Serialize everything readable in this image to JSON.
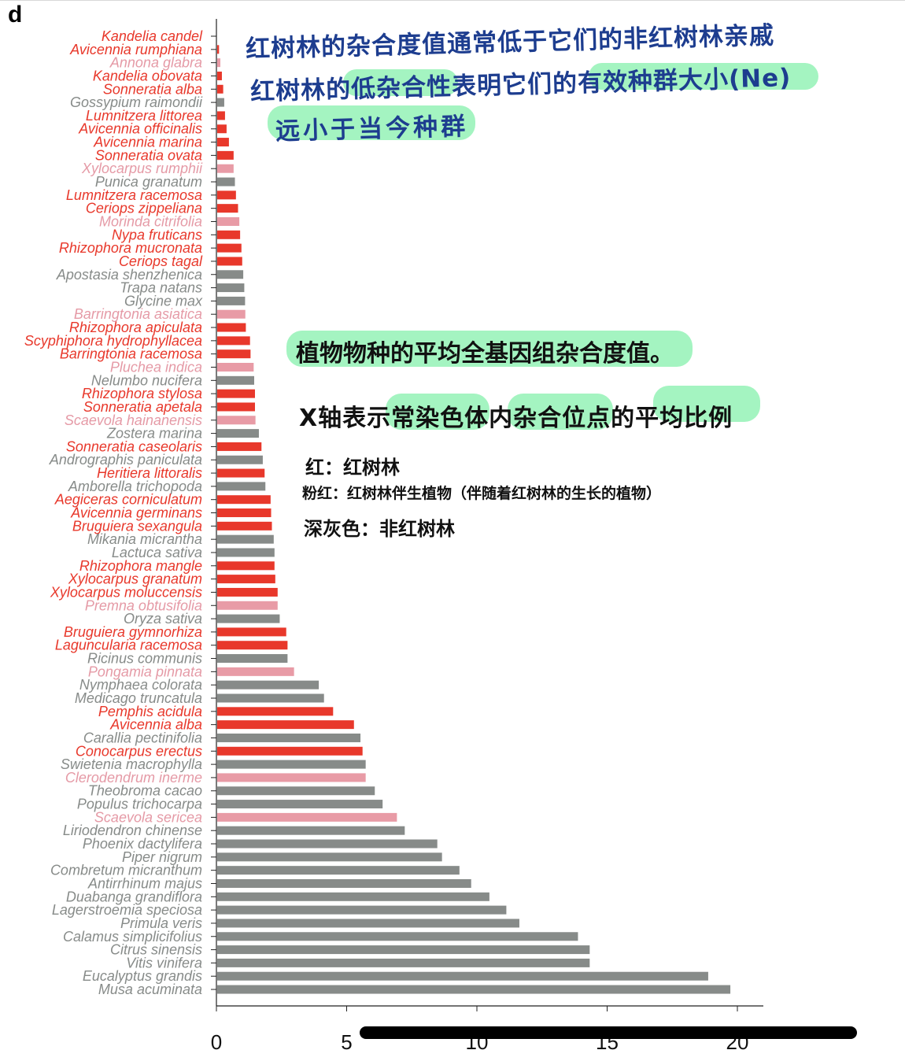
{
  "panel_label": "d",
  "annotations": {
    "line1": "红树林的杂合度值通常低于它们的非红树林亲戚",
    "line2": "红树林的低杂合性表明它们的有效种群大小(Ne)",
    "line3": "远小于当今种群",
    "line4": "植物物种的平均全基因组杂合度值。",
    "line5": "X轴表示常染色体内杂合位点的平均比例",
    "legend_red": "红：红树林",
    "legend_pink": "粉红：红树林伴生植物（伴随着红树林的生长的植物）",
    "legend_gray": "深灰色：非红树林"
  },
  "colors": {
    "mangrove": "#e8382b",
    "associate": "#e89ba6",
    "non_mangrove": "#878b89"
  },
  "chart_data": {
    "type": "bar",
    "orientation": "horizontal",
    "xlim": [
      0,
      21
    ],
    "xticks": [
      0,
      5,
      10,
      15,
      20
    ],
    "xlabel": "",
    "ylabel": "",
    "title": "",
    "bars": [
      {
        "name": "Kandelia candel",
        "value": 0.0,
        "group": "mangrove"
      },
      {
        "name": "Avicennia rumphiana",
        "value": 0.07,
        "group": "mangrove"
      },
      {
        "name": "Annona glabra",
        "value": 0.12,
        "group": "associate"
      },
      {
        "name": "Kandelia obovata",
        "value": 0.18,
        "group": "mangrove"
      },
      {
        "name": "Sonneratia alba",
        "value": 0.23,
        "group": "mangrove"
      },
      {
        "name": "Gossypium raimondii",
        "value": 0.27,
        "group": "non_mangrove"
      },
      {
        "name": "Lumnitzera littorea",
        "value": 0.3,
        "group": "mangrove"
      },
      {
        "name": "Avicennia officinalis",
        "value": 0.36,
        "group": "mangrove"
      },
      {
        "name": "Avicennia marina",
        "value": 0.45,
        "group": "mangrove"
      },
      {
        "name": "Sonneratia ovata",
        "value": 0.63,
        "group": "mangrove"
      },
      {
        "name": "Xylocarpus rumphii",
        "value": 0.63,
        "group": "associate"
      },
      {
        "name": "Punica granatum",
        "value": 0.68,
        "group": "non_mangrove"
      },
      {
        "name": "Lumnitzera racemosa",
        "value": 0.72,
        "group": "mangrove"
      },
      {
        "name": "Ceriops zippeliana",
        "value": 0.8,
        "group": "mangrove"
      },
      {
        "name": "Morinda citrifolia",
        "value": 0.85,
        "group": "associate"
      },
      {
        "name": "Nypa fruticans",
        "value": 0.88,
        "group": "mangrove"
      },
      {
        "name": "Rhizophora mucronata",
        "value": 0.93,
        "group": "mangrove"
      },
      {
        "name": "Ceriops tagal",
        "value": 0.96,
        "group": "mangrove"
      },
      {
        "name": "Apostasia shenzhenica",
        "value": 1.0,
        "group": "non_mangrove"
      },
      {
        "name": "Trapa natans",
        "value": 1.04,
        "group": "non_mangrove"
      },
      {
        "name": "Glycine max",
        "value": 1.07,
        "group": "non_mangrove"
      },
      {
        "name": "Barringtonia asiatica",
        "value": 1.08,
        "group": "associate"
      },
      {
        "name": "Rhizophora apiculata",
        "value": 1.1,
        "group": "mangrove"
      },
      {
        "name": "Scyphiphora hydrophyllacea",
        "value": 1.26,
        "group": "mangrove"
      },
      {
        "name": "Barringtonia racemosa",
        "value": 1.28,
        "group": "mangrove"
      },
      {
        "name": "Pluchea indica",
        "value": 1.4,
        "group": "associate"
      },
      {
        "name": "Nelumbo nucifera",
        "value": 1.42,
        "group": "non_mangrove"
      },
      {
        "name": "Rhizophora stylosa",
        "value": 1.45,
        "group": "mangrove"
      },
      {
        "name": "Sonneratia apetala",
        "value": 1.45,
        "group": "mangrove"
      },
      {
        "name": "Scaevola hainanensis",
        "value": 1.47,
        "group": "associate"
      },
      {
        "name": "Zostera marina",
        "value": 1.6,
        "group": "non_mangrove"
      },
      {
        "name": "Sonneratia caseolaris",
        "value": 1.7,
        "group": "mangrove"
      },
      {
        "name": "Andrographis paniculata",
        "value": 1.75,
        "group": "non_mangrove"
      },
      {
        "name": "Heritiera littoralis",
        "value": 1.82,
        "group": "mangrove"
      },
      {
        "name": "Amborella trichopoda",
        "value": 1.85,
        "group": "non_mangrove"
      },
      {
        "name": "Aegiceras corniculatum",
        "value": 2.05,
        "group": "mangrove"
      },
      {
        "name": "Avicennia germinans",
        "value": 2.07,
        "group": "mangrove"
      },
      {
        "name": "Bruguiera sexangula",
        "value": 2.1,
        "group": "mangrove"
      },
      {
        "name": "Mikania micrantha",
        "value": 2.17,
        "group": "non_mangrove"
      },
      {
        "name": "Lactuca sativa",
        "value": 2.2,
        "group": "non_mangrove"
      },
      {
        "name": "Rhizophora mangle",
        "value": 2.2,
        "group": "mangrove"
      },
      {
        "name": "Xylocarpus granatum",
        "value": 2.23,
        "group": "mangrove"
      },
      {
        "name": "Xylocarpus moluccensis",
        "value": 2.32,
        "group": "mangrove"
      },
      {
        "name": "Premna obtusifolia",
        "value": 2.32,
        "group": "associate"
      },
      {
        "name": "Oryza sativa",
        "value": 2.4,
        "group": "non_mangrove"
      },
      {
        "name": "Bruguiera gymnorhiza",
        "value": 2.65,
        "group": "mangrove"
      },
      {
        "name": "Laguncularia racemosa",
        "value": 2.7,
        "group": "mangrove"
      },
      {
        "name": "Ricinus communis",
        "value": 2.7,
        "group": "non_mangrove"
      },
      {
        "name": "Pongamia pinnata",
        "value": 2.95,
        "group": "associate"
      },
      {
        "name": "Nymphaea colorata",
        "value": 3.9,
        "group": "non_mangrove"
      },
      {
        "name": "Medicago truncatula",
        "value": 4.1,
        "group": "non_mangrove"
      },
      {
        "name": "Pemphis acidula",
        "value": 4.45,
        "group": "mangrove"
      },
      {
        "name": "Avicennia alba",
        "value": 5.25,
        "group": "mangrove"
      },
      {
        "name": "Carallia pectinifolia",
        "value": 5.5,
        "group": "non_mangrove"
      },
      {
        "name": "Conocarpus erectus",
        "value": 5.58,
        "group": "mangrove"
      },
      {
        "name": "Swietenia macrophylla",
        "value": 5.7,
        "group": "non_mangrove"
      },
      {
        "name": "Clerodendrum inerme",
        "value": 5.7,
        "group": "associate"
      },
      {
        "name": "Theobroma cacao",
        "value": 6.05,
        "group": "non_mangrove"
      },
      {
        "name": "Populus trichocarpa",
        "value": 6.35,
        "group": "non_mangrove"
      },
      {
        "name": "Scaevola sericea",
        "value": 6.9,
        "group": "associate"
      },
      {
        "name": "Liriodendron chinense",
        "value": 7.2,
        "group": "non_mangrove"
      },
      {
        "name": "Phoenix dactylifera",
        "value": 8.45,
        "group": "non_mangrove"
      },
      {
        "name": "Piper nigrum",
        "value": 8.63,
        "group": "non_mangrove"
      },
      {
        "name": "Combretum micranthum",
        "value": 9.3,
        "group": "non_mangrove"
      },
      {
        "name": "Antirrhinum majus",
        "value": 9.75,
        "group": "non_mangrove"
      },
      {
        "name": "Duabanga grandiflora",
        "value": 10.45,
        "group": "non_mangrove"
      },
      {
        "name": "Lagerstroemia speciosa",
        "value": 11.1,
        "group": "non_mangrove"
      },
      {
        "name": "Primula veris",
        "value": 11.6,
        "group": "non_mangrove"
      },
      {
        "name": "Calamus simplicifolius",
        "value": 13.85,
        "group": "non_mangrove"
      },
      {
        "name": "Citrus sinensis",
        "value": 14.3,
        "group": "non_mangrove"
      },
      {
        "name": "Vitis vinifera",
        "value": 14.3,
        "group": "non_mangrove"
      },
      {
        "name": "Eucalyptus grandis",
        "value": 18.85,
        "group": "non_mangrove"
      },
      {
        "name": "Musa acuminata",
        "value": 19.7,
        "group": "non_mangrove"
      }
    ]
  }
}
